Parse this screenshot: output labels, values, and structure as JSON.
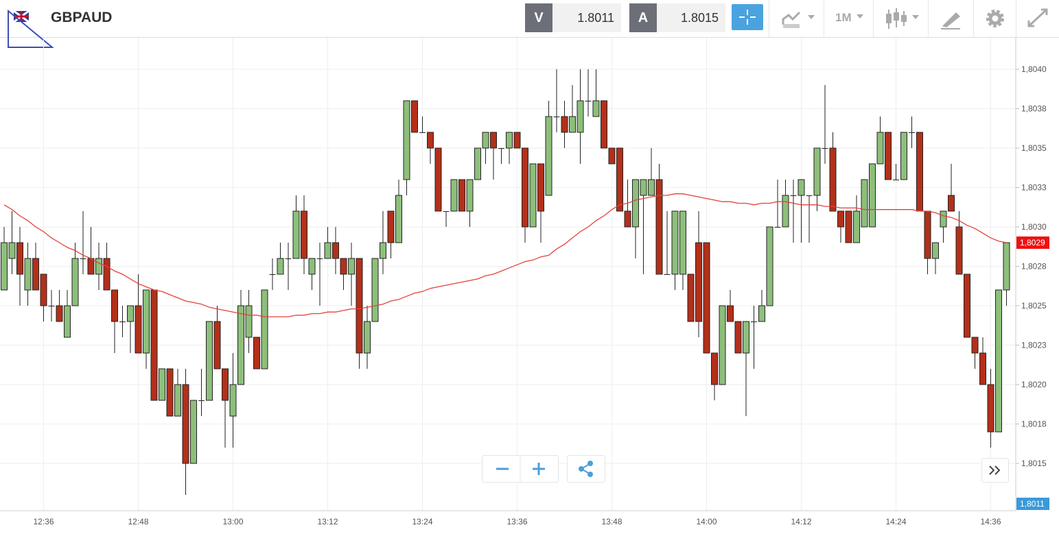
{
  "header": {
    "symbol": "GBPAUD",
    "bid_label": "V",
    "bid": 1.8011,
    "ask_label": "A",
    "ask": 1.8015,
    "timeframe": "1M"
  },
  "chart_data": {
    "type": "candlestick",
    "categories": [
      null,
      null,
      null,
      null,
      null,
      "12:36",
      null,
      null,
      null,
      null,
      null,
      null,
      null,
      null,
      null,
      null,
      null,
      "12:48",
      null,
      null,
      null,
      null,
      null,
      null,
      null,
      null,
      null,
      null,
      null,
      "13:00",
      null,
      null,
      null,
      null,
      null,
      null,
      null,
      null,
      null,
      null,
      null,
      "13:12",
      null,
      null,
      null,
      null,
      null,
      null,
      null,
      null,
      null,
      null,
      null,
      "13:24",
      null,
      null,
      null,
      null,
      null,
      null,
      null,
      null,
      null,
      null,
      null,
      "13:36",
      null,
      null,
      null,
      null,
      null,
      null,
      null,
      null,
      null,
      null,
      null,
      "13:48",
      null,
      null,
      null,
      null,
      null,
      null,
      null,
      null,
      null,
      null,
      null,
      "14:00",
      null,
      null,
      null,
      null,
      null,
      null,
      null,
      null,
      null,
      null,
      null,
      "14:12",
      null,
      null,
      null,
      null,
      null,
      null,
      null,
      null,
      null,
      null,
      null,
      "14:24",
      null,
      null,
      null,
      null,
      null,
      null,
      null,
      null,
      null,
      null,
      null,
      "14:36",
      null,
      null
    ],
    "open": [
      1.8026,
      1.8028,
      1.8029,
      1.8026,
      1.8028,
      1.8027,
      1.8025,
      1.8025,
      1.8023,
      1.8025,
      1.8028,
      1.8028,
      1.8027,
      1.8028,
      1.8026,
      1.8024,
      1.8024,
      1.8025,
      1.8022,
      1.8026,
      1.8019,
      1.8021,
      1.8018,
      1.802,
      1.8015,
      1.8019,
      1.8019,
      1.8024,
      1.8021,
      1.8018,
      1.802,
      1.8023,
      1.8023,
      1.8021,
      1.8027,
      1.8027,
      1.8028,
      1.8028,
      1.8031,
      1.8027,
      1.8028,
      1.8028,
      1.8029,
      1.8028,
      1.8027,
      1.8028,
      1.8022,
      1.8024,
      1.8028,
      1.8031,
      1.8029,
      1.8033,
      1.8038,
      1.8036,
      1.8036,
      1.8035,
      1.8031,
      1.8031,
      1.8033,
      1.8031,
      1.8033,
      1.8035,
      1.8036,
      1.8035,
      1.8035,
      1.8036,
      1.8035,
      1.803,
      1.8034,
      1.8032,
      1.8037,
      1.8037,
      1.8036,
      1.8036,
      1.8038,
      1.8037,
      1.8038,
      1.8035,
      1.8035,
      1.8031,
      1.803,
      1.8032,
      1.8032,
      1.8033,
      1.8027,
      1.8027,
      1.8027,
      1.8027,
      1.8029,
      1.8029,
      1.8022,
      1.802,
      1.8025,
      1.8024,
      1.8022,
      1.8024,
      1.8024,
      1.8025,
      1.803,
      1.803,
      1.8032,
      1.8032,
      1.8032,
      1.8032,
      1.8035,
      1.8035,
      1.8031,
      1.8031,
      1.8029,
      1.803,
      1.803,
      1.8034,
      1.8036,
      1.8033,
      1.8033,
      1.8036,
      1.8036,
      1.8031,
      1.8028,
      1.803,
      1.8032,
      1.803,
      1.8027,
      1.8023,
      1.8022,
      1.802,
      1.8017,
      1.8026
    ],
    "high": [
      1.803,
      1.8031,
      1.803,
      1.8029,
      1.8029,
      1.8027,
      1.8026,
      1.8026,
      1.8026,
      1.8029,
      1.8031,
      1.803,
      1.8029,
      1.8029,
      1.8026,
      1.8025,
      1.8025,
      1.8027,
      1.8026,
      1.8026,
      1.8021,
      1.8021,
      1.8021,
      1.8021,
      1.8019,
      1.8021,
      1.8024,
      1.8025,
      1.8021,
      1.8022,
      1.8026,
      1.8026,
      1.8023,
      1.8026,
      1.8028,
      1.8029,
      1.8029,
      1.8032,
      1.8032,
      1.8028,
      1.8029,
      1.803,
      1.803,
      1.8028,
      1.8029,
      1.8028,
      1.8025,
      1.8028,
      1.8031,
      1.8031,
      1.8033,
      1.8038,
      1.8038,
      1.8037,
      1.8036,
      1.8035,
      1.8031,
      1.8033,
      1.8033,
      1.8033,
      1.8035,
      1.8036,
      1.8036,
      1.8035,
      1.8036,
      1.8036,
      1.8035,
      1.8034,
      1.8034,
      1.8038,
      1.804,
      1.8038,
      1.8039,
      1.804,
      1.804,
      1.804,
      1.8038,
      1.8035,
      1.8035,
      1.8033,
      1.8033,
      1.8033,
      1.8035,
      1.8034,
      1.8031,
      1.8031,
      1.8031,
      1.8027,
      1.8031,
      1.8029,
      1.8022,
      1.8025,
      1.8026,
      1.8024,
      1.8024,
      1.8025,
      1.8026,
      1.803,
      1.8033,
      1.8033,
      1.8033,
      1.8033,
      1.8032,
      1.8035,
      1.8039,
      1.8036,
      1.8031,
      1.8031,
      1.8032,
      1.8033,
      1.8034,
      1.8037,
      1.8036,
      1.8034,
      1.8036,
      1.8037,
      1.8036,
      1.8031,
      1.8029,
      1.8031,
      1.8034,
      1.8031,
      1.8027,
      1.8023,
      1.8023,
      1.8021,
      1.8026,
      1.8029
    ],
    "low": [
      1.8026,
      1.8027,
      1.8025,
      1.8025,
      1.8026,
      1.8024,
      1.8024,
      1.8024,
      1.8023,
      1.8025,
      1.8027,
      1.8027,
      1.8026,
      1.8026,
      1.8022,
      1.8023,
      1.8022,
      1.8022,
      1.8021,
      1.8019,
      1.8019,
      1.8018,
      1.8018,
      1.8013,
      1.8015,
      1.8018,
      1.8019,
      1.8021,
      1.8016,
      1.8016,
      1.802,
      1.8022,
      1.8021,
      1.8021,
      1.8026,
      1.8027,
      1.8026,
      1.8028,
      1.8027,
      1.8026,
      1.8025,
      1.8028,
      1.8027,
      1.8026,
      1.8025,
      1.8021,
      1.8021,
      1.8024,
      1.8027,
      1.8028,
      1.8029,
      1.8032,
      1.8036,
      1.8036,
      1.8034,
      1.8031,
      1.803,
      1.8031,
      1.8031,
      1.803,
      1.8033,
      1.8034,
      1.8033,
      1.8034,
      1.8034,
      1.8035,
      1.8029,
      1.803,
      1.8029,
      1.8032,
      1.8036,
      1.8035,
      1.8036,
      1.8034,
      1.8037,
      1.8037,
      1.8035,
      1.8034,
      1.8031,
      1.803,
      1.8028,
      1.8027,
      1.8032,
      1.8027,
      1.8027,
      1.8026,
      1.8026,
      1.8024,
      1.8023,
      1.8022,
      1.8019,
      1.802,
      1.8024,
      1.8022,
      1.8018,
      1.8021,
      1.8024,
      1.8025,
      1.803,
      1.803,
      1.8029,
      1.8029,
      1.8029,
      1.8031,
      1.8034,
      1.8031,
      1.8029,
      1.8029,
      1.8029,
      1.803,
      1.803,
      1.8034,
      1.8033,
      1.8033,
      1.8033,
      1.8035,
      1.8031,
      1.8027,
      1.8027,
      1.8029,
      1.8031,
      1.8027,
      1.8023,
      1.8021,
      1.802,
      1.8016,
      1.8017,
      1.8025
    ],
    "close": [
      1.8029,
      1.8029,
      1.8027,
      1.8028,
      1.8026,
      1.8025,
      1.8025,
      1.8024,
      1.8025,
      1.8028,
      1.8028,
      1.8027,
      1.8028,
      1.8026,
      1.8024,
      1.8024,
      1.8025,
      1.8022,
      1.8026,
      1.8019,
      1.8021,
      1.8018,
      1.802,
      1.8015,
      1.8019,
      1.8019,
      1.8024,
      1.8021,
      1.8019,
      1.802,
      1.8025,
      1.8025,
      1.8021,
      1.8026,
      1.8027,
      1.8028,
      1.8028,
      1.8031,
      1.8028,
      1.8028,
      1.8028,
      1.8029,
      1.8028,
      1.8027,
      1.8028,
      1.8022,
      1.8024,
      1.8028,
      1.8029,
      1.8029,
      1.8032,
      1.8038,
      1.8036,
      1.8036,
      1.8035,
      1.8031,
      1.8031,
      1.8033,
      1.8031,
      1.8033,
      1.8035,
      1.8036,
      1.8035,
      1.8035,
      1.8036,
      1.8035,
      1.803,
      1.8034,
      1.8031,
      1.8037,
      1.8037,
      1.8036,
      1.8037,
      1.8038,
      1.8038,
      1.8038,
      1.8035,
      1.8034,
      1.8031,
      1.803,
      1.8033,
      1.8033,
      1.8033,
      1.8027,
      1.8027,
      1.8031,
      1.8031,
      1.8024,
      1.8024,
      1.8022,
      1.802,
      1.8025,
      1.8024,
      1.8022,
      1.8024,
      1.8024,
      1.8025,
      1.803,
      1.803,
      1.8032,
      1.8032,
      1.8033,
      1.8032,
      1.8035,
      1.8035,
      1.8031,
      1.803,
      1.8029,
      1.8031,
      1.8033,
      1.8034,
      1.8036,
      1.8033,
      1.8033,
      1.8036,
      1.8036,
      1.8031,
      1.8028,
      1.8029,
      1.8031,
      1.8031,
      1.8027,
      1.8023,
      1.8022,
      1.802,
      1.8017,
      1.8026,
      1.8029
    ],
    "up_color": "#8dbf7b",
    "down_color": "#b3301a",
    "ma": {
      "color": "#e5403a",
      "values": [
        1.80314,
        1.80311,
        1.80307,
        1.80304,
        1.803,
        1.80297,
        1.80293,
        1.8029,
        1.80287,
        1.80285,
        1.80282,
        1.8028,
        1.80277,
        1.80275,
        1.80272,
        1.8027,
        1.80267,
        1.80264,
        1.80262,
        1.8026,
        1.80259,
        1.80257,
        1.80255,
        1.80253,
        1.80252,
        1.80251,
        1.80249,
        1.80248,
        1.80247,
        1.80246,
        1.80245,
        1.80244,
        1.80244,
        1.80243,
        1.80243,
        1.80243,
        1.80243,
        1.80244,
        1.80244,
        1.80245,
        1.80245,
        1.80246,
        1.80246,
        1.80247,
        1.80248,
        1.80248,
        1.80249,
        1.8025,
        1.80251,
        1.80253,
        1.80254,
        1.80256,
        1.80258,
        1.80259,
        1.80261,
        1.80262,
        1.80263,
        1.80264,
        1.80265,
        1.80266,
        1.80267,
        1.80269,
        1.8027,
        1.80272,
        1.80274,
        1.80276,
        1.80278,
        1.80279,
        1.80281,
        1.80282,
        1.80286,
        1.80289,
        1.80293,
        1.80297,
        1.803,
        1.80304,
        1.80307,
        1.80311,
        1.80314,
        1.80315,
        1.80317,
        1.80318,
        1.80319,
        1.8032,
        1.8032,
        1.80321,
        1.80321,
        1.8032,
        1.80319,
        1.80318,
        1.80317,
        1.80316,
        1.80316,
        1.80315,
        1.80315,
        1.80314,
        1.80315,
        1.80315,
        1.80316,
        1.80316,
        1.80315,
        1.80314,
        1.80314,
        1.80314,
        1.80313,
        1.80313,
        1.80312,
        1.80312,
        1.80312,
        1.80311,
        1.80311,
        1.80311,
        1.80311,
        1.80311,
        1.80311,
        1.80311,
        1.8031,
        1.8031,
        1.80309,
        1.80307,
        1.80306,
        1.80304,
        1.80301,
        1.80299,
        1.80296,
        1.80293,
        1.80291,
        1.8029
      ]
    },
    "ylim": [
      1.8012,
      1.8042
    ],
    "yticks": [
      {
        "value": 1.8015,
        "label": "1,8015"
      },
      {
        "value": 1.80175,
        "label": "1,8018"
      },
      {
        "value": 1.802,
        "label": "1,8020"
      },
      {
        "value": 1.80225,
        "label": "1,8023"
      },
      {
        "value": 1.8025,
        "label": "1,8025"
      },
      {
        "value": 1.80275,
        "label": "1,8028"
      },
      {
        "value": 1.803,
        "label": "1,8030"
      },
      {
        "value": 1.80325,
        "label": "1,8033"
      },
      {
        "value": 1.8035,
        "label": "1,8035"
      },
      {
        "value": 1.80375,
        "label": "1,8038"
      },
      {
        "value": 1.804,
        "label": "1,8040"
      }
    ],
    "grid": true,
    "current_price": {
      "value": 1.8029,
      "label": "1,8029"
    },
    "bid_price": {
      "value": 1.8011,
      "label": "1,8011"
    }
  }
}
